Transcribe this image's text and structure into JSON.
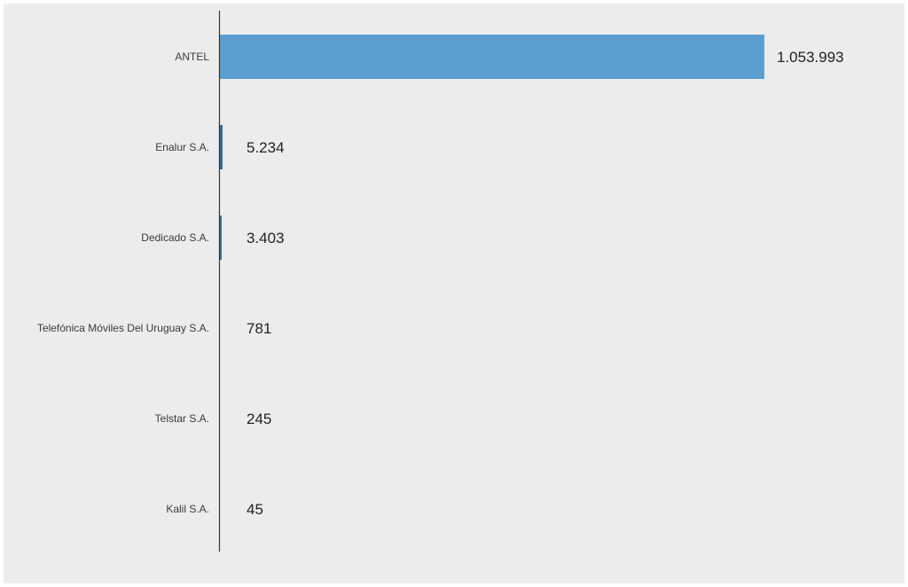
{
  "chart_data": {
    "type": "bar",
    "orientation": "horizontal",
    "title": "",
    "xlabel": "",
    "ylabel": "",
    "grid": false,
    "legend": "none",
    "categories": [
      "ANTEL",
      "Enalur S.A.",
      "Dedicado S.A.",
      "Telefónica Móviles Del Uruguay S.A.",
      "Telstar S.A.",
      "Kalil S.A."
    ],
    "values": [
      1053993,
      5234,
      3403,
      781,
      245,
      45
    ],
    "value_labels": [
      "1.053.993",
      "5.234",
      "3.403",
      "781",
      "245",
      "45"
    ],
    "xlim": [
      0,
      1053993
    ],
    "colors": {
      "bar": "#5b9fd1",
      "bar_small": "#2f6fa3",
      "axis": "#333333",
      "background": "#ececec"
    }
  }
}
